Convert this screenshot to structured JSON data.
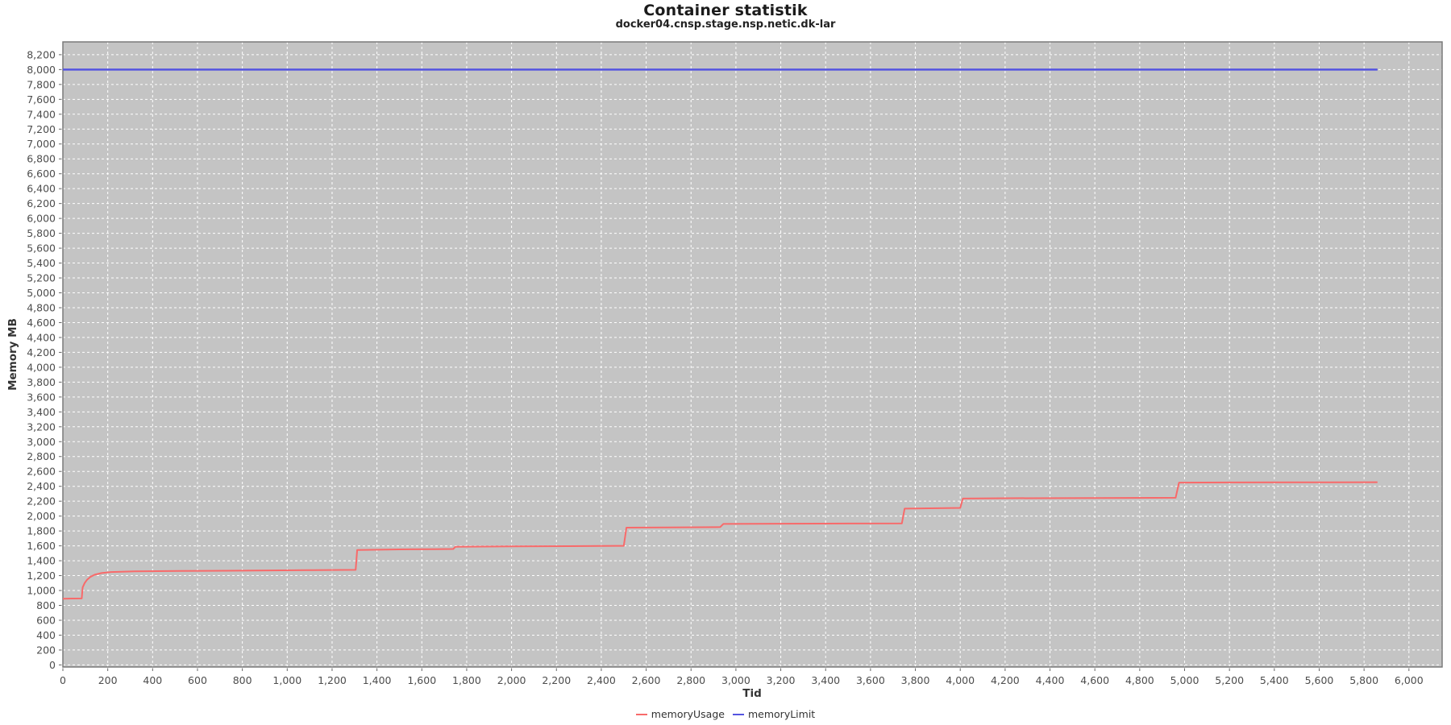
{
  "chart_data": {
    "type": "line",
    "title": "Container statistik",
    "subtitle": "docker04.cnsp.stage.nsp.netic.dk-lar",
    "xlabel": "Tid",
    "ylabel": "Memory MB",
    "xlim": [
      0,
      6148
    ],
    "ylim": [
      -28,
      8372
    ],
    "grid": {
      "on": true,
      "color": "#ffffff",
      "dash": "3,3"
    },
    "legend_position": "bottom",
    "plot_background": "#c4c4c4",
    "plot_border": "#7a7a7a",
    "tick_color": "#666666",
    "tick_label_color": "#4d4d4d",
    "x_tick_values": [
      0,
      200,
      400,
      600,
      800,
      1000,
      1200,
      1400,
      1600,
      1800,
      2000,
      2200,
      2400,
      2600,
      2800,
      3000,
      3200,
      3400,
      3600,
      3800,
      4000,
      4200,
      4400,
      4600,
      4800,
      5000,
      5200,
      5400,
      5600,
      5800,
      6000
    ],
    "x_tick_labels": [
      "0",
      "200",
      "400",
      "600",
      "800",
      "1,000",
      "1,200",
      "1,400",
      "1,600",
      "1,800",
      "2,000",
      "2,200",
      "2,400",
      "2,600",
      "2,800",
      "3,000",
      "3,200",
      "3,400",
      "3,600",
      "3,800",
      "4,000",
      "4,200",
      "4,400",
      "4,600",
      "4,800",
      "5,000",
      "5,200",
      "5,400",
      "5,600",
      "5,800",
      "6,000"
    ],
    "y_tick_values": [
      0,
      200,
      400,
      600,
      800,
      1000,
      1200,
      1400,
      1600,
      1800,
      2000,
      2200,
      2400,
      2600,
      2800,
      3000,
      3200,
      3400,
      3600,
      3800,
      4000,
      4200,
      4400,
      4600,
      4800,
      5000,
      5200,
      5400,
      5600,
      5800,
      6000,
      6200,
      6400,
      6600,
      6800,
      7000,
      7200,
      7400,
      7600,
      7800,
      8000,
      8200
    ],
    "y_tick_labels": [
      "0",
      "200",
      "400",
      "600",
      "800",
      "1,000",
      "1,200",
      "1,400",
      "1,600",
      "1,800",
      "2,000",
      "2,200",
      "2,400",
      "2,600",
      "2,800",
      "3,000",
      "3,200",
      "3,400",
      "3,600",
      "3,800",
      "4,000",
      "4,200",
      "4,400",
      "4,600",
      "4,800",
      "5,000",
      "5,200",
      "5,400",
      "5,600",
      "5,800",
      "6,000",
      "6,200",
      "6,400",
      "6,600",
      "6,800",
      "7,000",
      "7,200",
      "7,400",
      "7,600",
      "7,800",
      "8,000",
      "8,200"
    ],
    "series": [
      {
        "name": "memoryUsage",
        "color": "#f86a6a",
        "points": [
          [
            0,
            890
          ],
          [
            40,
            892
          ],
          [
            84,
            893
          ],
          [
            88,
            1040
          ],
          [
            97,
            1100
          ],
          [
            107,
            1142
          ],
          [
            122,
            1182
          ],
          [
            142,
            1212
          ],
          [
            172,
            1234
          ],
          [
            215,
            1248
          ],
          [
            320,
            1257
          ],
          [
            520,
            1262
          ],
          [
            720,
            1266
          ],
          [
            920,
            1270
          ],
          [
            1120,
            1274
          ],
          [
            1305,
            1278
          ],
          [
            1312,
            1545
          ],
          [
            1500,
            1552
          ],
          [
            1660,
            1556
          ],
          [
            1740,
            1558
          ],
          [
            1750,
            1588
          ],
          [
            2000,
            1592
          ],
          [
            2250,
            1596
          ],
          [
            2500,
            1600
          ],
          [
            2512,
            1845
          ],
          [
            2700,
            1848
          ],
          [
            2930,
            1852
          ],
          [
            2944,
            1895
          ],
          [
            3200,
            1898
          ],
          [
            3500,
            1900
          ],
          [
            3740,
            1902
          ],
          [
            3752,
            2100
          ],
          [
            3900,
            2106
          ],
          [
            4000,
            2110
          ],
          [
            4012,
            2235
          ],
          [
            4200,
            2240
          ],
          [
            4600,
            2243
          ],
          [
            4960,
            2246
          ],
          [
            4975,
            2450
          ],
          [
            5200,
            2452
          ],
          [
            5500,
            2453
          ],
          [
            5860,
            2455
          ]
        ]
      },
      {
        "name": "memoryLimit",
        "color": "#5454e0",
        "points": [
          [
            0,
            8000
          ],
          [
            5860,
            8000
          ]
        ]
      }
    ]
  }
}
